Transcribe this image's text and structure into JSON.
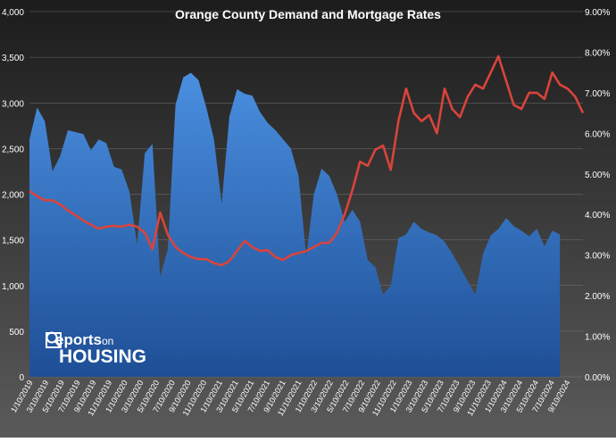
{
  "chart_data": {
    "type": "area+line",
    "title": "Orange County Demand and Mortgage Rates",
    "left_axis": {
      "ylim": [
        0,
        4000
      ],
      "ticks": [
        "0",
        "500",
        "1,000",
        "1,500",
        "2,000",
        "2,500",
        "3,000",
        "3,500",
        "4,000"
      ]
    },
    "right_axis": {
      "ylim": [
        0,
        9
      ],
      "ticks": [
        "0.00%",
        "1.00%",
        "2.00%",
        "3.00%",
        "4.00%",
        "5.00%",
        "6.00%",
        "7.00%",
        "8.00%",
        "9.00%"
      ]
    },
    "x_tick_labels": [
      "1/10/2019",
      "3/10/2019",
      "5/10/2019",
      "7/10/2019",
      "9/10/2019",
      "11/10/2019",
      "1/10/2020",
      "3/10/2020",
      "5/10/2020",
      "7/10/2020",
      "9/10/2020",
      "11/10/2020",
      "1/10/2021",
      "3/10/2021",
      "5/10/2021",
      "7/10/2021",
      "9/10/2021",
      "11/10/2021",
      "1/10/2022",
      "3/10/2022",
      "5/10/2022",
      "7/10/2022",
      "9/10/2022",
      "11/10/2022",
      "1/10/2023",
      "3/10/2023",
      "5/10/2023",
      "7/10/2023",
      "9/10/2023",
      "11/10/2023",
      "1/10/2024",
      "3/10/2024",
      "5/10/2024",
      "7/10/2024",
      "9/10/2024"
    ],
    "x_range": [
      0,
      72
    ],
    "demand_points": [
      [
        0,
        2600
      ],
      [
        1,
        2950
      ],
      [
        2,
        2800
      ],
      [
        3,
        2250
      ],
      [
        4,
        2420
      ],
      [
        5,
        2700
      ],
      [
        6,
        2680
      ],
      [
        7,
        2660
      ],
      [
        8,
        2480
      ],
      [
        9,
        2600
      ],
      [
        10,
        2560
      ],
      [
        11,
        2300
      ],
      [
        12,
        2270
      ],
      [
        13,
        2030
      ],
      [
        14,
        1450
      ],
      [
        15,
        2450
      ],
      [
        16,
        2550
      ],
      [
        17,
        1100
      ],
      [
        18,
        1400
      ],
      [
        19,
        2980
      ],
      [
        20,
        3280
      ],
      [
        21,
        3330
      ],
      [
        22,
        3250
      ],
      [
        23,
        2950
      ],
      [
        24,
        2600
      ],
      [
        25,
        1900
      ],
      [
        26,
        2850
      ],
      [
        27,
        3150
      ],
      [
        28,
        3100
      ],
      [
        29,
        3080
      ],
      [
        30,
        2900
      ],
      [
        31,
        2780
      ],
      [
        32,
        2700
      ],
      [
        33,
        2600
      ],
      [
        34,
        2500
      ],
      [
        35,
        2200
      ],
      [
        36,
        1320
      ],
      [
        37,
        2000
      ],
      [
        38,
        2280
      ],
      [
        39,
        2200
      ],
      [
        40,
        2000
      ],
      [
        41,
        1700
      ],
      [
        42,
        1830
      ],
      [
        43,
        1700
      ],
      [
        44,
        1280
      ],
      [
        45,
        1200
      ],
      [
        46,
        900
      ],
      [
        47,
        1000
      ],
      [
        48,
        1520
      ],
      [
        49,
        1560
      ],
      [
        50,
        1700
      ],
      [
        51,
        1620
      ],
      [
        52,
        1580
      ],
      [
        53,
        1550
      ],
      [
        54,
        1480
      ],
      [
        55,
        1350
      ],
      [
        56,
        1200
      ],
      [
        57,
        1050
      ],
      [
        58,
        900
      ],
      [
        59,
        1350
      ],
      [
        60,
        1550
      ],
      [
        61,
        1620
      ],
      [
        62,
        1740
      ],
      [
        63,
        1650
      ],
      [
        64,
        1600
      ],
      [
        65,
        1540
      ],
      [
        66,
        1620
      ],
      [
        67,
        1430
      ],
      [
        68,
        1600
      ],
      [
        69,
        1560
      ]
    ],
    "rate_points": [
      [
        0,
        4.58
      ],
      [
        1,
        4.45
      ],
      [
        2,
        4.35
      ],
      [
        3,
        4.35
      ],
      [
        4,
        4.25
      ],
      [
        5,
        4.1
      ],
      [
        6,
        3.98
      ],
      [
        7,
        3.85
      ],
      [
        8,
        3.75
      ],
      [
        9,
        3.65
      ],
      [
        10,
        3.7
      ],
      [
        11,
        3.72
      ],
      [
        12,
        3.7
      ],
      [
        13,
        3.75
      ],
      [
        14,
        3.7
      ],
      [
        15,
        3.55
      ],
      [
        16,
        3.15
      ],
      [
        17,
        4.05
      ],
      [
        18,
        3.5
      ],
      [
        19,
        3.2
      ],
      [
        20,
        3.05
      ],
      [
        21,
        2.95
      ],
      [
        22,
        2.9
      ],
      [
        23,
        2.9
      ],
      [
        24,
        2.8
      ],
      [
        25,
        2.75
      ],
      [
        26,
        2.85
      ],
      [
        27,
        3.1
      ],
      [
        28,
        3.35
      ],
      [
        29,
        3.2
      ],
      [
        30,
        3.1
      ],
      [
        31,
        3.12
      ],
      [
        32,
        2.95
      ],
      [
        33,
        2.88
      ],
      [
        34,
        3.0
      ],
      [
        35,
        3.05
      ],
      [
        36,
        3.1
      ],
      [
        37,
        3.2
      ],
      [
        38,
        3.3
      ],
      [
        39,
        3.3
      ],
      [
        40,
        3.55
      ],
      [
        41,
        4.0
      ],
      [
        42,
        4.6
      ],
      [
        43,
        5.3
      ],
      [
        44,
        5.2
      ],
      [
        45,
        5.6
      ],
      [
        46,
        5.7
      ],
      [
        47,
        5.1
      ],
      [
        48,
        6.3
      ],
      [
        49,
        7.1
      ],
      [
        50,
        6.5
      ],
      [
        51,
        6.3
      ],
      [
        52,
        6.45
      ],
      [
        53,
        6.0
      ],
      [
        54,
        7.1
      ],
      [
        55,
        6.6
      ],
      [
        56,
        6.4
      ],
      [
        57,
        6.9
      ],
      [
        58,
        7.2
      ],
      [
        59,
        7.1
      ],
      [
        60,
        7.5
      ],
      [
        61,
        7.9
      ],
      [
        62,
        7.3
      ],
      [
        63,
        6.7
      ],
      [
        64,
        6.6
      ],
      [
        65,
        7.0
      ],
      [
        66,
        7.0
      ],
      [
        67,
        6.85
      ],
      [
        68,
        7.5
      ],
      [
        69,
        7.2
      ],
      [
        70,
        7.1
      ],
      [
        71,
        6.9
      ],
      [
        72,
        6.5
      ]
    ],
    "colors": {
      "background_top": "#1c1c1c",
      "background_bottom": "#5a5a5a",
      "demand_fill_top": "#4a8fe0",
      "demand_fill_bottom": "#1e4f96",
      "rate_line": "#d9443b",
      "text": "#ffffff",
      "grid": "#8a8a8a"
    },
    "grid": true
  },
  "logo": {
    "text": "ReportsonHOUSING"
  }
}
